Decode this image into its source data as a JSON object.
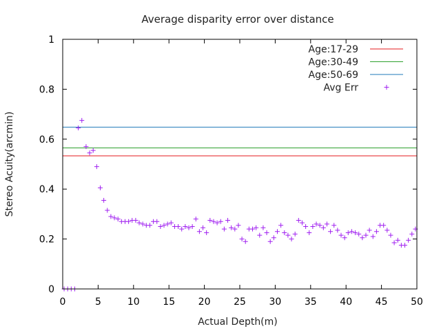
{
  "chart_data": {
    "type": "scatter",
    "title": "Average disparity error over distance",
    "xlabel": "Actual Depth(m)",
    "ylabel": "Stereo Acuity(arcmin)",
    "xlim": [
      0,
      50
    ],
    "ylim": [
      0,
      1
    ],
    "x_ticks": [
      0,
      5,
      10,
      15,
      20,
      25,
      30,
      35,
      40,
      45,
      50
    ],
    "x_tick_labels": [
      "0",
      "5",
      "10",
      "15",
      "20",
      "25",
      "30",
      "35",
      "40",
      "45",
      "50"
    ],
    "y_ticks": [
      0,
      0.2,
      0.4,
      0.6,
      0.8,
      1
    ],
    "y_tick_labels": [
      "0",
      "0.2",
      "0.4",
      "0.6",
      "0.8",
      "1"
    ],
    "grid": false,
    "legend_position": "top-right",
    "reference_lines": [
      {
        "name": "Age:17-29",
        "y": 0.533,
        "color": "#e41a1c"
      },
      {
        "name": "Age:30-49",
        "y": 0.565,
        "color": "#2ca02c"
      },
      {
        "name": "Age:50-69",
        "y": 0.648,
        "color": "#1f7ab8"
      }
    ],
    "series": [
      {
        "name": "Avg Err",
        "marker": "+",
        "color": "#a020f0",
        "x": [
          0.2,
          0.7,
          1.2,
          1.7,
          2.2,
          2.7,
          3.3,
          3.8,
          4.3,
          4.8,
          5.3,
          5.8,
          6.3,
          6.8,
          7.3,
          7.8,
          8.3,
          8.8,
          9.3,
          9.8,
          10.3,
          10.8,
          11.3,
          11.8,
          12.3,
          12.8,
          13.3,
          13.8,
          14.3,
          14.8,
          15.3,
          15.8,
          16.3,
          16.8,
          17.3,
          17.8,
          18.3,
          18.8,
          19.3,
          19.8,
          20.3,
          20.8,
          21.3,
          21.8,
          22.3,
          22.8,
          23.3,
          23.8,
          24.3,
          24.8,
          25.3,
          25.8,
          26.3,
          26.8,
          27.3,
          27.8,
          28.3,
          28.8,
          29.3,
          29.8,
          30.3,
          30.8,
          31.3,
          31.8,
          32.3,
          32.8,
          33.3,
          33.8,
          34.3,
          34.8,
          35.3,
          35.8,
          36.3,
          36.8,
          37.3,
          37.8,
          38.3,
          38.8,
          39.3,
          39.8,
          40.3,
          40.8,
          41.3,
          41.8,
          42.3,
          42.8,
          43.3,
          43.8,
          44.3,
          44.8,
          45.3,
          45.8,
          46.3,
          46.8,
          47.3,
          47.8,
          48.3,
          48.8,
          49.3,
          49.8
        ],
        "y": [
          0,
          0,
          0,
          0,
          0.645,
          0.675,
          0.57,
          0.545,
          0.555,
          0.49,
          0.405,
          0.355,
          0.315,
          0.29,
          0.285,
          0.28,
          0.27,
          0.27,
          0.27,
          0.275,
          0.275,
          0.265,
          0.26,
          0.255,
          0.255,
          0.27,
          0.27,
          0.25,
          0.255,
          0.26,
          0.265,
          0.25,
          0.25,
          0.24,
          0.25,
          0.245,
          0.25,
          0.28,
          0.23,
          0.245,
          0.225,
          0.275,
          0.27,
          0.265,
          0.27,
          0.24,
          0.275,
          0.245,
          0.24,
          0.255,
          0.2,
          0.19,
          0.24,
          0.24,
          0.245,
          0.215,
          0.245,
          0.225,
          0.19,
          0.205,
          0.23,
          0.255,
          0.225,
          0.215,
          0.2,
          0.22,
          0.275,
          0.265,
          0.25,
          0.225,
          0.25,
          0.26,
          0.255,
          0.245,
          0.26,
          0.23,
          0.255,
          0.235,
          0.215,
          0.205,
          0.225,
          0.23,
          0.225,
          0.22,
          0.205,
          0.215,
          0.235,
          0.21,
          0.23,
          0.255,
          0.255,
          0.235,
          0.215,
          0.185,
          0.195,
          0.175,
          0.175,
          0.195,
          0.22,
          0.24
        ]
      }
    ]
  }
}
